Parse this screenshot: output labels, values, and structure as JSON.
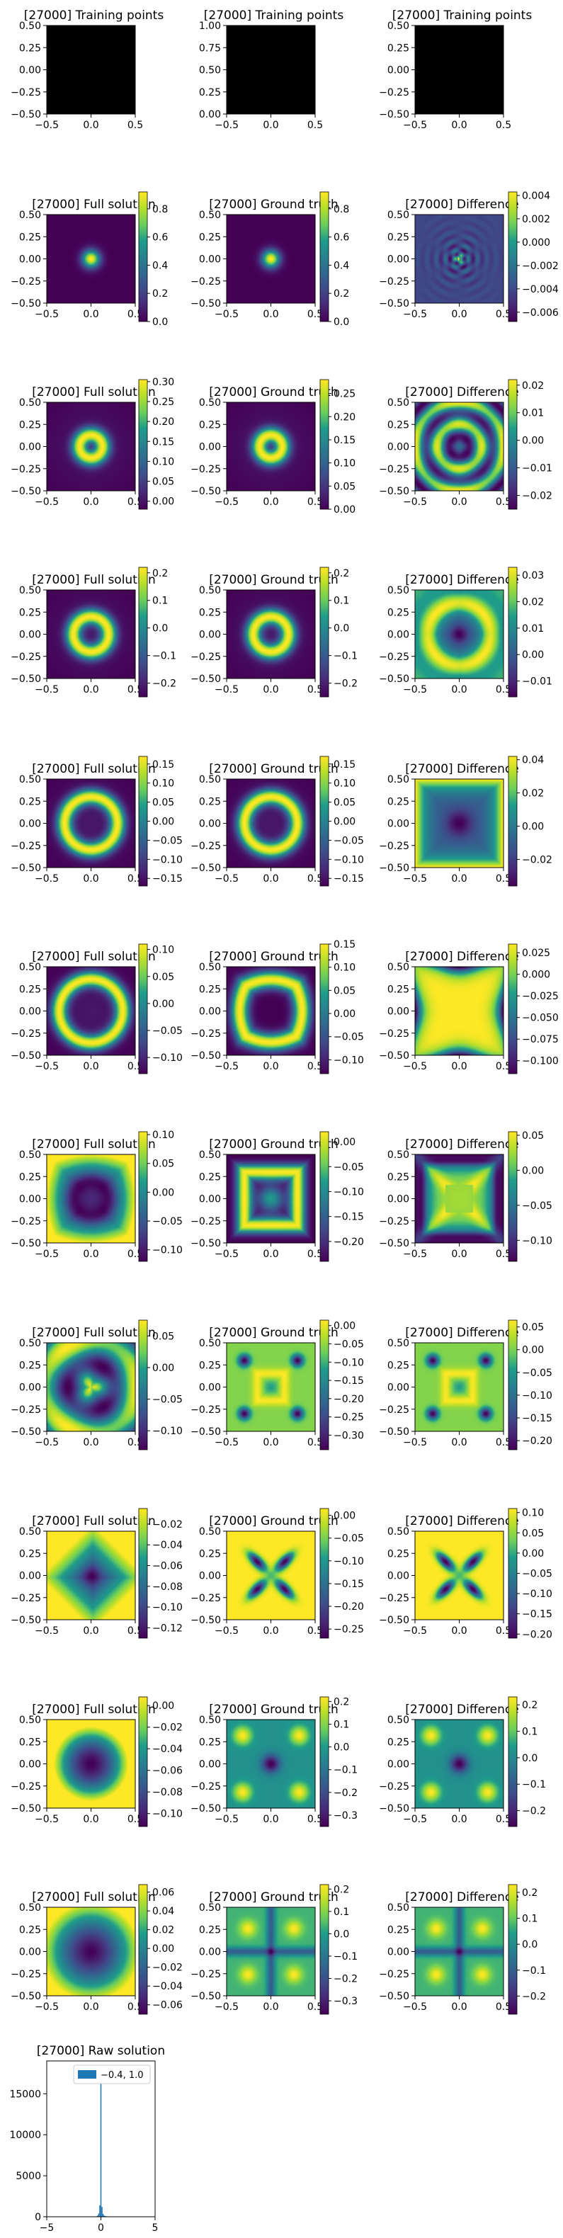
{
  "colors": {
    "viridis": [
      "#440154",
      "#482777",
      "#3f4a8a",
      "#31678e",
      "#26838f",
      "#1f9d8a",
      "#6cce5a",
      "#b6de2b",
      "#fee825"
    ],
    "hist_bar": "#1f77b4",
    "training_fill": "#000000"
  },
  "chart_data": {
    "type": "heatmap",
    "rows": [
      {
        "panels": [
          {
            "title": "[27000] Training points",
            "kind": "scatter",
            "xticks": [
              "−0.5",
              "0.0",
              "0.5"
            ],
            "yticks": [
              "0.50",
              "0.25",
              "0.00",
              "−0.25",
              "−0.50"
            ],
            "ylim": [
              -0.5,
              0.5
            ],
            "colorbar": null
          },
          {
            "title": "[27000] Training points",
            "kind": "scatter",
            "xticks": [
              "−0.5",
              "0.0",
              "0.5"
            ],
            "yticks": [
              "1.00",
              "0.75",
              "0.50",
              "0.25",
              "0.00"
            ],
            "ylim": [
              0,
              1
            ],
            "colorbar": null
          },
          {
            "title": "[27000] Training points",
            "kind": "scatter",
            "xticks": [
              "−0.5",
              "0.0",
              "0.5"
            ],
            "yticks": [
              "0.50",
              "0.25",
              "0.00",
              "−0.25",
              "−0.50"
            ],
            "ylim": [
              -0.5,
              0.5
            ],
            "colorbar": null
          }
        ]
      },
      {
        "panels": [
          {
            "title": "[27000] Full solution",
            "field": "gauss",
            "colorbar": {
              "ticks": [
                "0.8",
                "0.6",
                "0.4",
                "0.2",
                "0.0"
              ],
              "range": [
                0.0,
                0.92
              ]
            }
          },
          {
            "title": "[27000] Ground truth",
            "field": "gauss",
            "colorbar": {
              "ticks": [
                "0.8",
                "0.6",
                "0.4",
                "0.2",
                "0.0"
              ],
              "range": [
                0.0,
                0.92
              ]
            }
          },
          {
            "title": "[27000] Difference",
            "field": "diff1",
            "colorbar": {
              "ticks": [
                "0.004",
                "0.002",
                "0.000",
                "−0.002",
                "−0.004",
                "−0.006"
              ],
              "range": [
                -0.0068,
                0.0043
              ]
            }
          }
        ]
      },
      {
        "panels": [
          {
            "title": "[27000] Full solution",
            "field": "ring",
            "radius": 0.13,
            "colorbar": {
              "ticks": [
                "0.30",
                "0.25",
                "0.20",
                "0.15",
                "0.10",
                "0.05",
                "0.00"
              ],
              "range": [
                -0.02,
                0.305
              ]
            }
          },
          {
            "title": "[27000] Ground truth",
            "field": "ring",
            "radius": 0.13,
            "colorbar": {
              "ticks": [
                "0.25",
                "0.20",
                "0.15",
                "0.10",
                "0.05",
                "0.00"
              ],
              "range": [
                0.0,
                0.28
              ]
            }
          },
          {
            "title": "[27000] Difference",
            "field": "diff2",
            "colorbar": {
              "ticks": [
                "0.02",
                "0.01",
                "0.00",
                "−0.01",
                "−0.02"
              ],
              "range": [
                -0.025,
                0.022
              ]
            }
          }
        ]
      },
      {
        "panels": [
          {
            "title": "[27000] Full solution",
            "field": "ring",
            "radius": 0.2,
            "colorbar": {
              "ticks": [
                "0.2",
                "0.1",
                "0.0",
                "−0.1",
                "−0.2"
              ],
              "range": [
                -0.25,
                0.22
              ]
            }
          },
          {
            "title": "[27000] Ground truth",
            "field": "ring",
            "radius": 0.2,
            "colorbar": {
              "ticks": [
                "0.2",
                "0.1",
                "0.0",
                "−0.1",
                "−0.2"
              ],
              "range": [
                -0.25,
                0.22
              ]
            }
          },
          {
            "title": "[27000] Difference",
            "field": "diff3",
            "colorbar": {
              "ticks": [
                "0.03",
                "0.02",
                "0.01",
                "0.00",
                "−0.01"
              ],
              "range": [
                -0.016,
                0.033
              ]
            }
          }
        ]
      },
      {
        "panels": [
          {
            "title": "[27000] Full solution",
            "field": "ring",
            "radius": 0.3,
            "colorbar": {
              "ticks": [
                "0.15",
                "0.10",
                "0.05",
                "0.00",
                "−0.05",
                "−0.10",
                "−0.15"
              ],
              "range": [
                -0.17,
                0.17
              ]
            }
          },
          {
            "title": "[27000] Ground truth",
            "field": "ring",
            "radius": 0.3,
            "colorbar": {
              "ticks": [
                "0.15",
                "0.10",
                "0.05",
                "0.00",
                "−0.05",
                "−0.10",
                "−0.15"
              ],
              "range": [
                -0.17,
                0.17
              ]
            }
          },
          {
            "title": "[27000] Difference",
            "field": "diff4",
            "colorbar": {
              "ticks": [
                "0.04",
                "0.02",
                "0.00",
                "−0.02"
              ],
              "range": [
                -0.036,
                0.042
              ]
            }
          }
        ]
      },
      {
        "panels": [
          {
            "title": "[27000] Full solution",
            "field": "ring",
            "radius": 0.36,
            "colorbar": {
              "ticks": [
                "0.10",
                "0.05",
                "0.00",
                "−0.05",
                "−0.10"
              ],
              "range": [
                -0.13,
                0.11
              ]
            }
          },
          {
            "title": "[27000] Ground truth",
            "field": "ring_sq",
            "radius": 0.36,
            "colorbar": {
              "ticks": [
                "0.15",
                "0.10",
                "0.05",
                "0.00",
                "−0.05",
                "−0.10"
              ],
              "range": [
                -0.13,
                0.15
              ]
            }
          },
          {
            "title": "[27000] Difference",
            "field": "diff5",
            "colorbar": {
              "ticks": [
                "0.025",
                "0.000",
                "−0.025",
                "−0.050",
                "−0.075",
                "−0.100"
              ],
              "range": [
                -0.115,
                0.035
              ]
            }
          }
        ]
      },
      {
        "panels": [
          {
            "title": "[27000] Full solution",
            "field": "ring_soft",
            "radius": 0.38,
            "colorbar": {
              "ticks": [
                "0.10",
                "0.05",
                "0.00",
                "−0.05",
                "−0.10"
              ],
              "range": [
                -0.12,
                0.105
              ]
            }
          },
          {
            "title": "[27000] Ground truth",
            "field": "square_frame",
            "colorbar": {
              "ticks": [
                "0.00",
                "−0.05",
                "−0.10",
                "−0.15",
                "−0.20"
              ],
              "range": [
                -0.24,
                0.02
              ]
            }
          },
          {
            "title": "[27000] Difference",
            "field": "star",
            "colorbar": {
              "ticks": [
                "0.05",
                "0.00",
                "−0.05",
                "−0.10"
              ],
              "range": [
                -0.13,
                0.055
              ]
            }
          }
        ]
      },
      {
        "panels": [
          {
            "title": "[27000] Full solution",
            "field": "dim_blob",
            "colorbar": {
              "ticks": [
                "0.05",
                "0.00",
                "−0.05",
                "−0.10"
              ],
              "range": [
                -0.13,
                0.075
              ]
            }
          },
          {
            "title": "[27000] Ground truth",
            "field": "corner_dots",
            "colorbar": {
              "ticks": [
                "0.00",
                "−0.05",
                "−0.10",
                "−0.15",
                "−0.20",
                "−0.25",
                "−0.30"
              ],
              "range": [
                -0.34,
                0.015
              ]
            }
          },
          {
            "title": "[27000] Difference",
            "field": "corner_dots",
            "colorbar": {
              "ticks": [
                "0.05",
                "0.00",
                "−0.05",
                "−0.10",
                "−0.15",
                "−0.20"
              ],
              "range": [
                -0.22,
                0.065
              ]
            }
          }
        ]
      },
      {
        "panels": [
          {
            "title": "[27000] Full solution",
            "field": "center_low",
            "colorbar": {
              "ticks": [
                "−0.02",
                "−0.04",
                "−0.06",
                "−0.08",
                "−0.10",
                "−0.12"
              ],
              "range": [
                -0.13,
                -0.005
              ]
            }
          },
          {
            "title": "[27000] Ground truth",
            "field": "x_shape",
            "colorbar": {
              "ticks": [
                "0.00",
                "−0.05",
                "−0.10",
                "−0.15",
                "−0.20",
                "−0.25"
              ],
              "range": [
                -0.27,
                0.015
              ]
            }
          },
          {
            "title": "[27000] Difference",
            "field": "x_shape",
            "colorbar": {
              "ticks": [
                "0.10",
                "0.05",
                "0.00",
                "−0.05",
                "−0.10",
                "−0.15",
                "−0.20"
              ],
              "range": [
                -0.21,
                0.11
              ]
            }
          }
        ]
      },
      {
        "panels": [
          {
            "title": "[27000] Full solution",
            "field": "center_low2",
            "colorbar": {
              "ticks": [
                "0.00",
                "−0.02",
                "−0.04",
                "−0.06",
                "−0.08",
                "−0.10"
              ],
              "range": [
                -0.112,
                0.008
              ]
            }
          },
          {
            "title": "[27000] Ground truth",
            "field": "quad_spots",
            "colorbar": {
              "ticks": [
                "0.2",
                "0.1",
                "0.0",
                "−0.1",
                "−0.2",
                "−0.3"
              ],
              "range": [
                -0.35,
                0.22
              ]
            }
          },
          {
            "title": "[27000] Difference",
            "field": "quad_spots",
            "colorbar": {
              "ticks": [
                "0.2",
                "0.1",
                "0.0",
                "−0.1",
                "−0.2"
              ],
              "range": [
                -0.26,
                0.23
              ]
            }
          }
        ]
      },
      {
        "panels": [
          {
            "title": "[27000] Full solution",
            "field": "center_low3",
            "colorbar": {
              "ticks": [
                "0.06",
                "0.04",
                "0.02",
                "0.00",
                "−0.02",
                "−0.04",
                "−0.06"
              ],
              "range": [
                -0.07,
                0.068
              ]
            }
          },
          {
            "title": "[27000] Ground truth",
            "field": "cross_spots",
            "colorbar": {
              "ticks": [
                "0.2",
                "0.1",
                "0.0",
                "−0.1",
                "−0.2",
                "−0.3"
              ],
              "range": [
                -0.36,
                0.22
              ]
            }
          },
          {
            "title": "[27000] Difference",
            "field": "cross_spots",
            "colorbar": {
              "ticks": [
                "0.2",
                "0.1",
                "0.0",
                "−0.1",
                "−0.2"
              ],
              "range": [
                -0.27,
                0.23
              ]
            }
          }
        ]
      }
    ],
    "field_axis": {
      "xticks": [
        "−0.5",
        "0.0",
        "0.5"
      ],
      "yticks": [
        "0.50",
        "0.25",
        "0.00",
        "−0.25",
        "−0.50"
      ],
      "xlim": [
        -0.5,
        0.5
      ],
      "ylim": [
        -0.5,
        0.5
      ]
    },
    "histogram": {
      "title": "[27000] Raw solution",
      "type": "bar",
      "legend": "−0.4, 1.0",
      "legend_loc": "top-right",
      "xlim": [
        -5,
        5
      ],
      "ylim": [
        0,
        19000
      ],
      "xticks": [
        "−5",
        "0",
        "5"
      ],
      "yticks": [
        "15000",
        "10000",
        "5000",
        "0"
      ],
      "bins": [
        {
          "x": -0.4,
          "count": 60
        },
        {
          "x": -0.3,
          "count": 150
        },
        {
          "x": -0.2,
          "count": 400
        },
        {
          "x": -0.1,
          "count": 1400
        },
        {
          "x": 0.0,
          "count": 18000
        },
        {
          "x": 0.1,
          "count": 1200
        },
        {
          "x": 0.2,
          "count": 350
        },
        {
          "x": 0.3,
          "count": 140
        },
        {
          "x": 0.4,
          "count": 90
        },
        {
          "x": 0.5,
          "count": 60
        },
        {
          "x": 0.6,
          "count": 40
        },
        {
          "x": 0.7,
          "count": 30
        },
        {
          "x": 0.8,
          "count": 25
        },
        {
          "x": 0.9,
          "count": 20
        },
        {
          "x": 1.0,
          "count": 15
        }
      ]
    }
  }
}
